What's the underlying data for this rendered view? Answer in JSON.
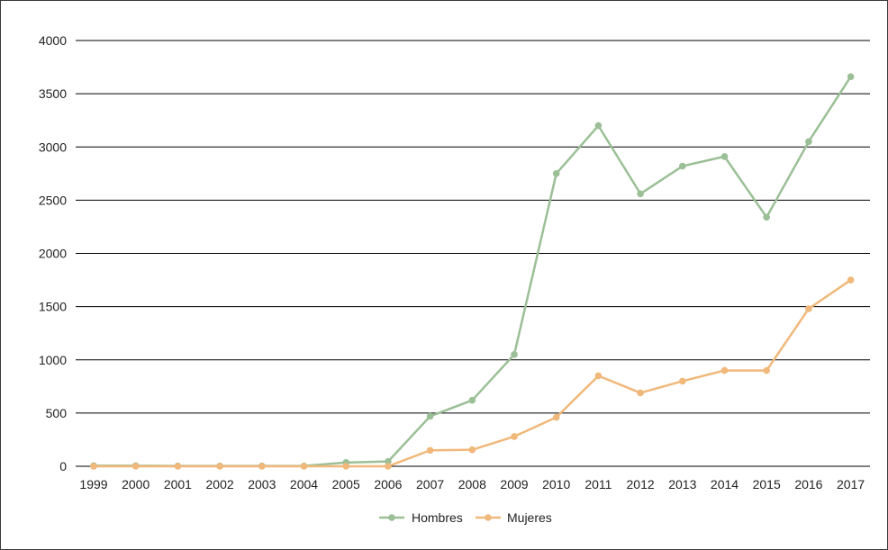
{
  "chart_data": {
    "type": "line",
    "title": "",
    "xlabel": "",
    "ylabel": "",
    "categories": [
      "1999",
      "2000",
      "2001",
      "2002",
      "2003",
      "2004",
      "2005",
      "2006",
      "2007",
      "2008",
      "2009",
      "2010",
      "2011",
      "2012",
      "2013",
      "2014",
      "2015",
      "2016",
      "2017"
    ],
    "ylim": [
      0,
      4000
    ],
    "yticks": [
      0,
      500,
      1000,
      1500,
      2000,
      2500,
      3000,
      3500,
      4000
    ],
    "grid": true,
    "legend_position": "bottom",
    "series": [
      {
        "name": "Hombres",
        "color": "#9bbf96",
        "values": [
          5,
          5,
          3,
          3,
          3,
          3,
          35,
          45,
          470,
          620,
          1050,
          2750,
          3200,
          2560,
          2820,
          2910,
          2340,
          3050,
          3660
        ]
      },
      {
        "name": "Mujeres",
        "color": "#f0b87a",
        "values": [
          0,
          0,
          0,
          0,
          0,
          0,
          0,
          0,
          150,
          155,
          280,
          460,
          850,
          690,
          800,
          900,
          900,
          1480,
          1750
        ]
      }
    ]
  }
}
